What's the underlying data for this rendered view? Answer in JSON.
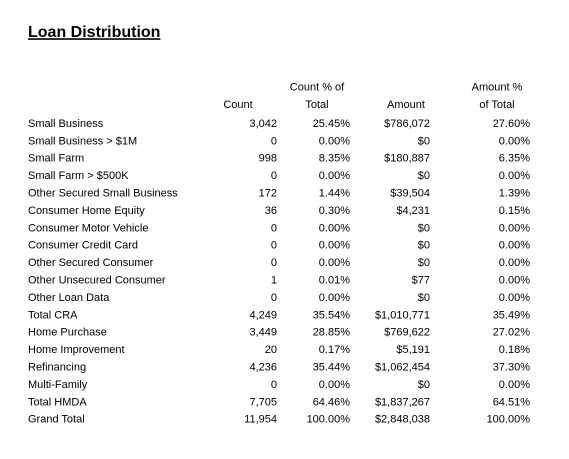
{
  "title": "Loan Distribution",
  "table": {
    "columns": [
      {
        "lines": [
          "Count"
        ]
      },
      {
        "lines": [
          "Count % of",
          "Total"
        ]
      },
      {
        "lines": [
          "Amount"
        ]
      },
      {
        "lines": [
          "Amount %",
          "of Total"
        ]
      }
    ],
    "rows": [
      [
        "Small Business",
        "3,042",
        "25.45%",
        "$786,072",
        "27.60%"
      ],
      [
        "Small Business > $1M",
        "0",
        "0.00%",
        "$0",
        "0.00%"
      ],
      [
        "Small Farm",
        "998",
        "8.35%",
        "$180,887",
        "6.35%"
      ],
      [
        "Small Farm > $500K",
        "0",
        "0.00%",
        "$0",
        "0.00%"
      ],
      [
        "Other Secured Small Business",
        "172",
        "1.44%",
        "$39,504",
        "1.39%"
      ],
      [
        "Consumer Home Equity",
        "36",
        "0.30%",
        "$4,231",
        "0.15%"
      ],
      [
        "Consumer Motor Vehicle",
        "0",
        "0.00%",
        "$0",
        "0.00%"
      ],
      [
        "Consumer Credit Card",
        "0",
        "0.00%",
        "$0",
        "0.00%"
      ],
      [
        "Other Secured Consumer",
        "0",
        "0.00%",
        "$0",
        "0.00%"
      ],
      [
        "Other Unsecured Consumer",
        "1",
        "0.01%",
        "$77",
        "0.00%"
      ],
      [
        "Other Loan Data",
        "0",
        "0.00%",
        "$0",
        "0.00%"
      ],
      [
        "Total CRA",
        "4,249",
        "35.54%",
        "$1,010,771",
        "35.49%"
      ],
      [
        "Home Purchase",
        "3,449",
        "28.85%",
        "$769,622",
        "27.02%"
      ],
      [
        "Home Improvement",
        "20",
        "0.17%",
        "$5,191",
        "0.18%"
      ],
      [
        "Refinancing",
        "4,236",
        "35.44%",
        "$1,062,454",
        "37.30%"
      ],
      [
        "Multi-Family",
        "0",
        "0.00%",
        "$0",
        "0.00%"
      ],
      [
        "Total HMDA",
        "7,705",
        "64.46%",
        "$1,837,267",
        "64.51%"
      ],
      [
        "Grand Total",
        "11,954",
        "100.00%",
        "$2,848,038",
        "100.00%"
      ]
    ]
  }
}
